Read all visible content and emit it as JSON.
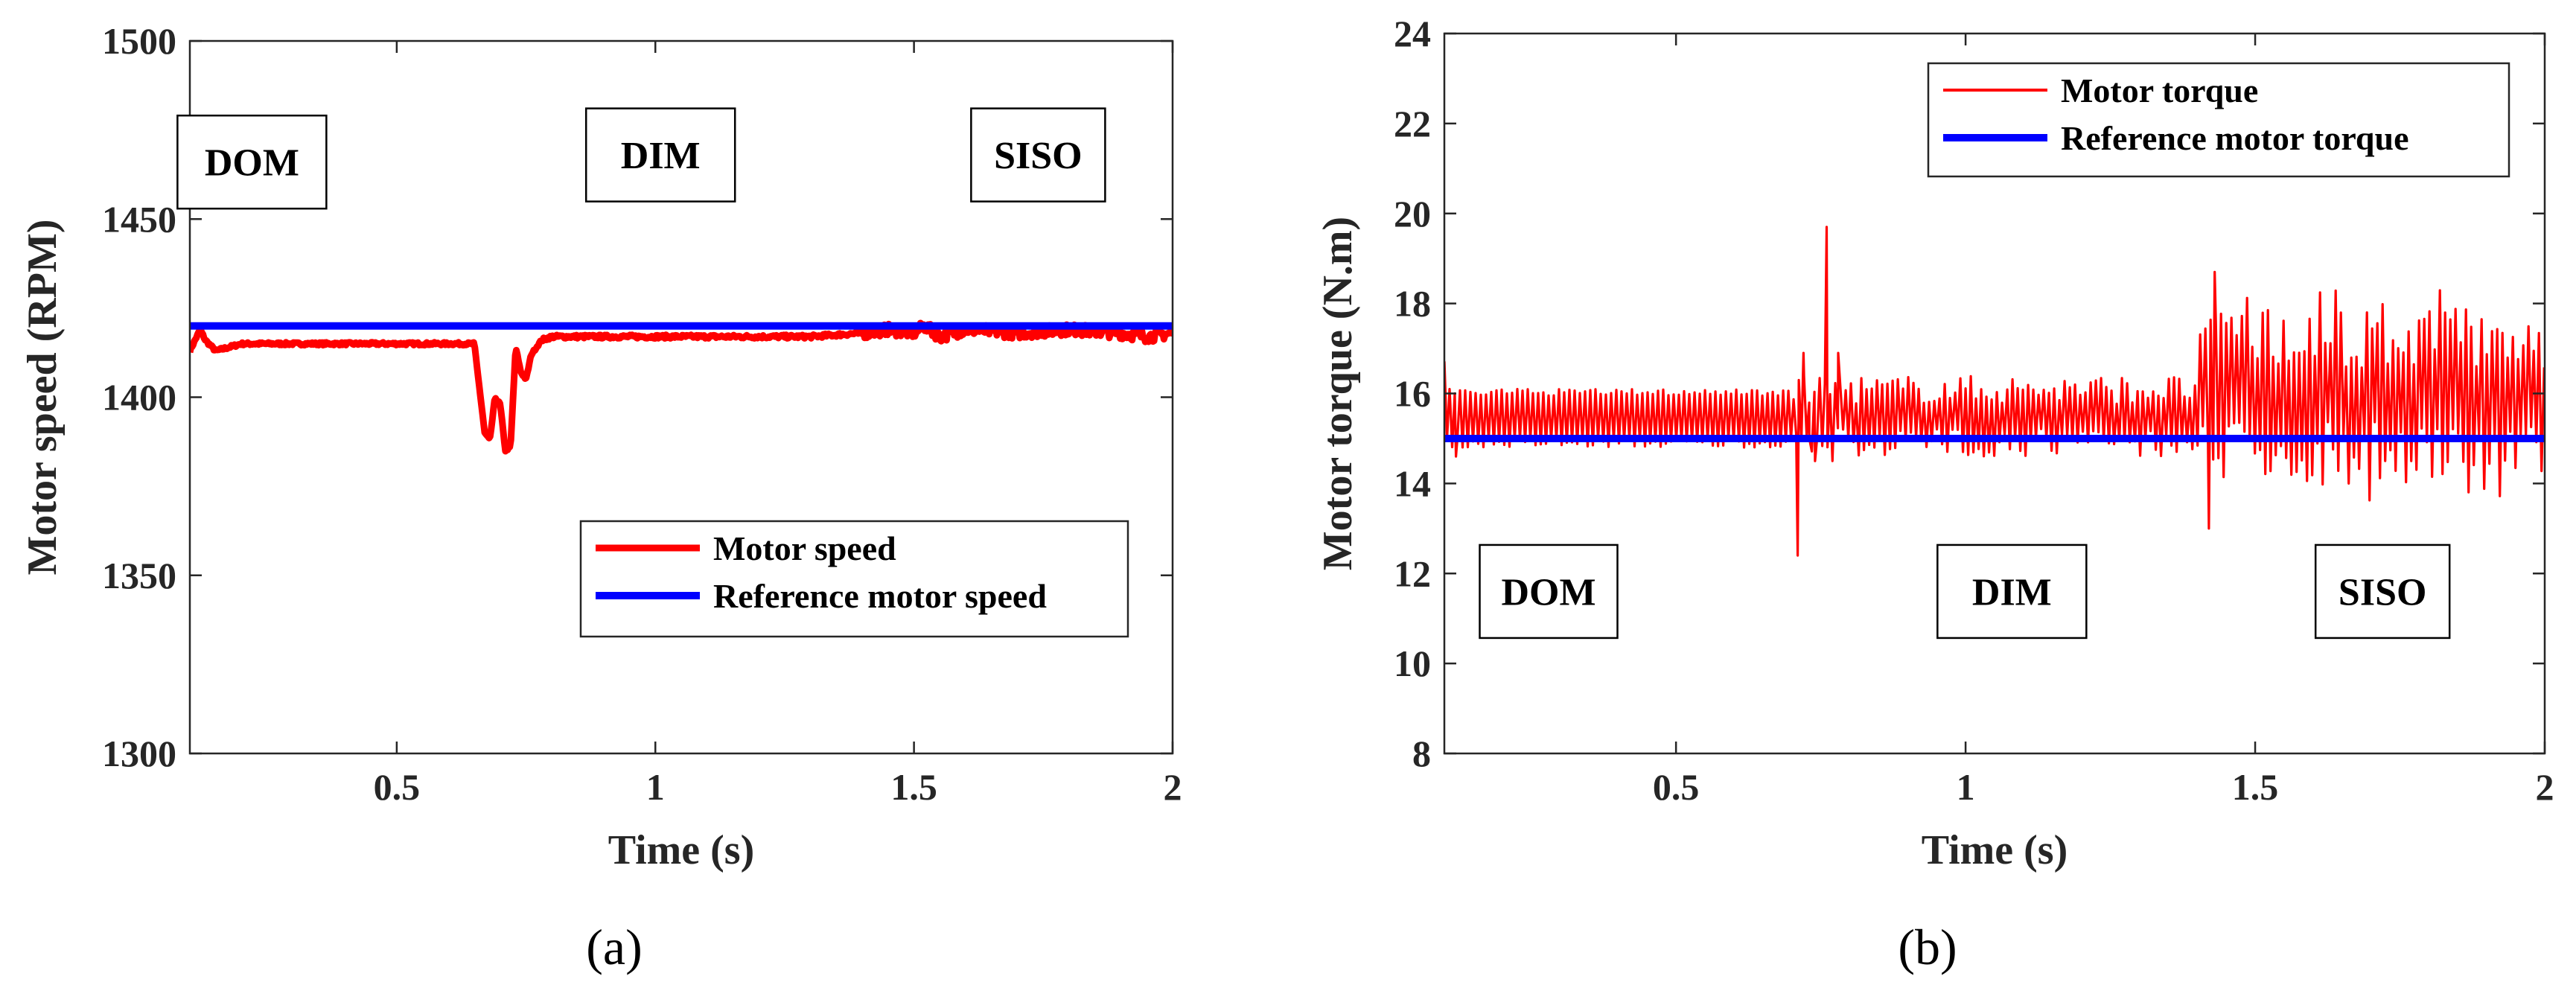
{
  "chart_data": [
    {
      "type": "line",
      "panel_label": "(a)",
      "xlabel": "Time (s)",
      "ylabel": "Motor speed (RPM)",
      "xlim": [
        0.1,
        2.0
      ],
      "ylim": [
        1300,
        1500
      ],
      "xticks": [
        0.5,
        1,
        1.5,
        2
      ],
      "xtick_labels": [
        "0.5",
        "1",
        "1.5",
        "2"
      ],
      "yticks": [
        1300,
        1350,
        1400,
        1450,
        1500
      ],
      "ytick_labels": [
        "1300",
        "1350",
        "1400",
        "1450",
        "1500"
      ],
      "grid": false,
      "legend_position": "lower-right",
      "annotations": [
        {
          "text": "DOM",
          "x": 0.22,
          "y": 1466
        },
        {
          "text": "DIM",
          "x": 1.01,
          "y": 1468
        },
        {
          "text": "SISO",
          "x": 1.74,
          "y": 1468
        }
      ],
      "series": [
        {
          "name": "Motor speed",
          "color": "#ff0000",
          "x": [
            0.1,
            0.12,
            0.13,
            0.15,
            0.2,
            0.3,
            0.4,
            0.5,
            0.6,
            0.65,
            0.67,
            0.68,
            0.69,
            0.7,
            0.71,
            0.72,
            0.73,
            0.74,
            0.75,
            0.76,
            0.78,
            0.8,
            0.9,
            1.0,
            1.1,
            1.2,
            1.3,
            1.4,
            1.45,
            1.5,
            1.52,
            1.55,
            1.6,
            1.7,
            1.8,
            1.9,
            1.95,
            2.0
          ],
          "y": [
            1413,
            1419,
            1416,
            1413,
            1415,
            1415,
            1415,
            1415,
            1415,
            1415,
            1390,
            1388,
            1400,
            1398,
            1385,
            1386,
            1414,
            1407,
            1405,
            1412,
            1416,
            1417,
            1417,
            1417,
            1417,
            1417,
            1417,
            1418,
            1419,
            1418,
            1420,
            1417,
            1419,
            1418,
            1419,
            1418,
            1417,
            1418
          ]
        },
        {
          "name": "Reference motor speed",
          "color": "#0000ff",
          "x": [
            0.1,
            2.0
          ],
          "y": [
            1420,
            1420
          ]
        }
      ]
    },
    {
      "type": "line",
      "panel_label": "(b)",
      "xlabel": "Time (s)",
      "ylabel": "Motor torque (N.m)",
      "xlim": [
        0.1,
        2.0
      ],
      "ylim": [
        8,
        24
      ],
      "xticks": [
        0.5,
        1,
        1.5,
        2
      ],
      "xtick_labels": [
        "0.5",
        "1",
        "1.5",
        "2"
      ],
      "yticks": [
        8,
        10,
        12,
        14,
        16,
        18,
        20,
        22,
        24
      ],
      "ytick_labels": [
        "8",
        "10",
        "12",
        "14",
        "16",
        "18",
        "20",
        "22",
        "24"
      ],
      "grid": false,
      "legend_position": "top-right",
      "annotations": [
        {
          "text": "DOM",
          "x": 0.28,
          "y": 11.6
        },
        {
          "text": "DIM",
          "x": 1.08,
          "y": 11.6
        },
        {
          "text": "SISO",
          "x": 1.72,
          "y": 11.6
        }
      ],
      "series": [
        {
          "name": "Motor torque",
          "color": "#ff0000",
          "x": [
            0.1,
            0.11,
            0.12,
            0.13,
            0.15,
            0.2,
            0.3,
            0.4,
            0.5,
            0.6,
            0.7,
            0.71,
            0.72,
            0.73,
            0.74,
            0.75,
            0.76,
            0.77,
            0.78,
            0.8,
            0.85,
            0.9,
            1.0,
            1.1,
            1.2,
            1.3,
            1.4,
            1.42,
            1.43,
            1.45,
            1.5,
            1.6,
            1.7,
            1.8,
            1.9,
            2.0
          ],
          "y": [
            16.7,
            15.8,
            14.6,
            15.2,
            15.5,
            15.5,
            15.5,
            15.5,
            15.5,
            15.5,
            15.4,
            12.4,
            16.9,
            15.0,
            14.5,
            15.4,
            19.7,
            14.5,
            16.9,
            15.4,
            15.4,
            15.4,
            15.4,
            15.4,
            15.5,
            15.5,
            15.5,
            13.0,
            18.7,
            15.5,
            15.5,
            15.5,
            15.5,
            15.5,
            15.5,
            15.5
          ],
          "oscillation_band": {
            "dom": [
              14.8,
              16.1
            ],
            "dim": [
              14.6,
              16.4
            ],
            "siso": [
              14.0,
              17.9
            ]
          }
        },
        {
          "name": "Reference motor torque",
          "color": "#0000ff",
          "x": [
            0.1,
            2.0
          ],
          "y": [
            15,
            15
          ]
        }
      ]
    }
  ]
}
